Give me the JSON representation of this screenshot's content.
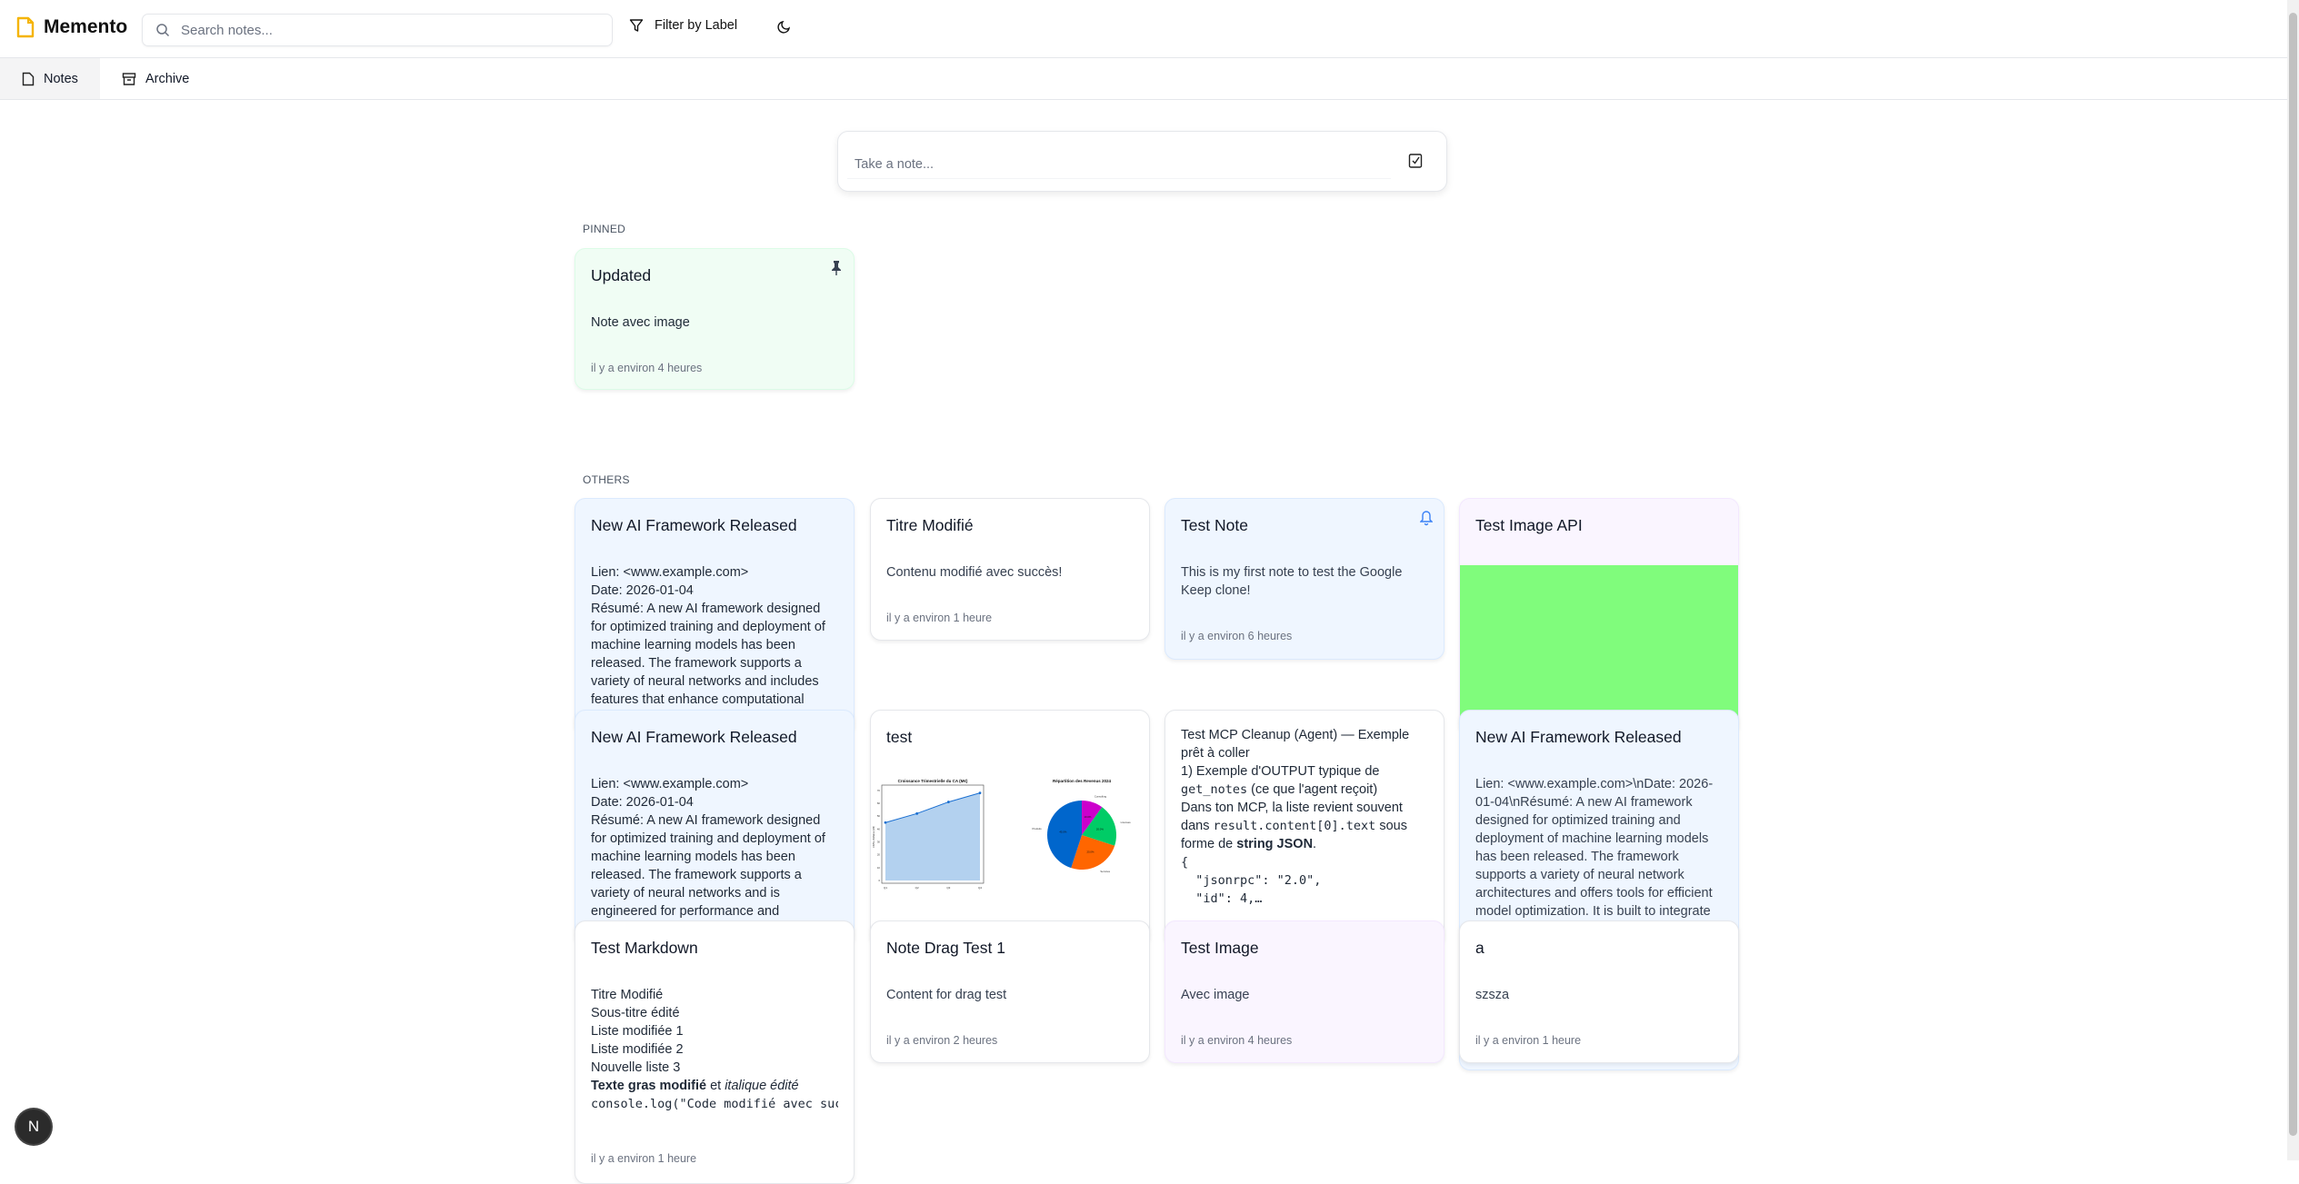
{
  "app": {
    "title": "Memento",
    "accent": "#f5b400"
  },
  "search": {
    "placeholder": "Search notes..."
  },
  "toolbar": {
    "filter_label": "Filter by Label",
    "theme_icon": "moon-icon"
  },
  "tabs": [
    {
      "label": "Notes",
      "icon": "file-icon",
      "active": true
    },
    {
      "label": "Archive",
      "icon": "archive-icon",
      "active": false
    }
  ],
  "composer": {
    "placeholder": "Take a note...",
    "icon": "checkbox-icon"
  },
  "sections": {
    "pinned": "PINNED",
    "others": "OTHERS"
  },
  "pinned": [
    {
      "title": "Updated",
      "body": "Note avec image",
      "time": "il y a environ 4 heures",
      "color": "#f0fdf4",
      "icon": "pin-icon"
    }
  ],
  "others": [
    {
      "title": "New AI Framework Released",
      "lines": [
        "Lien: <www.example.com>",
        "Date: 2026-01-04",
        "Résumé: A new AI framework designed for optimized training and deployment of machine learning models has been released. The framework supports a variety of neural networks and includes features that enhance computational"
      ],
      "color": "#eff6ff"
    },
    {
      "title": "Titre Modifié",
      "body": "Contenu modifié avec succès!",
      "time": "il y a environ 1 heure",
      "color": "#ffffff"
    },
    {
      "title": "Test Note",
      "body": "This is my first note to test the Google Keep clone!",
      "time": "il y a environ 6 heures",
      "color": "#eff6ff",
      "icon": "bell-icon"
    },
    {
      "title": "Test Image API",
      "color": "#faf5ff",
      "image_color": "#80fc7c"
    },
    {
      "title": "New AI Framework Released",
      "lines": [
        "Lien: <www.example.com>",
        "Date: 2026-01-04",
        "Résumé: A new AI framework designed for optimized training and deployment of machine learning models has been released. The framework supports a variety of neural networks and is engineered for performance and"
      ],
      "color": "#eff6ff"
    },
    {
      "title": "test",
      "color": "#ffffff",
      "image": {
        "line_title": "Croissance Trimestrielle du CA (M€)",
        "line_ylabel": "Chiffre d'affaires (M€)",
        "line_x": [
          "Q1",
          "Q2",
          "Q3",
          "Q4"
        ],
        "line_y": [
          45,
          52,
          61,
          68
        ],
        "line_yticks": [
          "0",
          "10",
          "20",
          "30",
          "40",
          "50",
          "60",
          "70"
        ],
        "pie_title": "Répartition des Revenus 2024",
        "pie": [
          {
            "label": "Produits",
            "value": 45,
            "pct": "45.0%",
            "color": "#0066cc"
          },
          {
            "label": "Services",
            "value": 25,
            "pct": "25.0%",
            "color": "#ff6600"
          },
          {
            "label": "Licenses",
            "value": 20,
            "pct": "20.0%",
            "color": "#00cc66"
          },
          {
            "label": "Consulting",
            "value": 10,
            "pct": "10.0%",
            "color": "#cc00cc"
          }
        ]
      }
    },
    {
      "mcp": [
        "Test MCP Cleanup (Agent) — Exemple prêt à coller",
        "1) Exemple d'OUTPUT typique de"
      ],
      "mcp_code1": "get_notes",
      "mcp_t1": " (ce que l'agent reçoit)",
      "mcp_t2": "Dans ton MCP, la liste revient souvent",
      "mcp_t3a": "dans ",
      "mcp_code2": "result.content[0].text",
      "mcp_t3b": " sous",
      "mcp_t4a": "forme de ",
      "mcp_bold": "string JSON",
      "mcp_t4b": ".",
      "mcp_code_lines": [
        "{",
        "  \"jsonrpc\": \"2.0\",",
        "  \"id\": 4,…"
      ],
      "color": "#ffffff"
    },
    {
      "title": "New AI Framework Released",
      "body": "Lien: <www.example.com>\\nDate: 2026-01-04\\nRésumé: A new AI framework designed for optimized training and deployment of machine learning models has been released. The framework supports a variety of neural network architectures and offers tools for efficient model optimization. It is built to integrate",
      "color": "#eff6ff"
    },
    {
      "title": "Test Markdown",
      "lines": [
        "Titre Modifié",
        "Sous-titre édité",
        "Liste modifiée 1",
        "Liste modifiée 2",
        "Nouvelle liste 3"
      ],
      "bold": "Texte gras modifié",
      "mid": " et ",
      "italic": "italique édité",
      "code": "console.log(\"Code modifié avec succès\")",
      "time": "il y a environ 1 heure",
      "color": "#ffffff"
    },
    {
      "title": "Note Drag Test 1",
      "body": "Content for drag test",
      "time": "il y a environ 2 heures",
      "color": "#ffffff"
    },
    {
      "title": "Test Image",
      "body": "Avec image",
      "time": "il y a environ 4 heures",
      "color": "#faf5ff"
    },
    {
      "title": "a",
      "body": "szsza",
      "time": "il y a environ 1 heure",
      "color": "#ffffff"
    }
  ],
  "dev_badge": "N"
}
